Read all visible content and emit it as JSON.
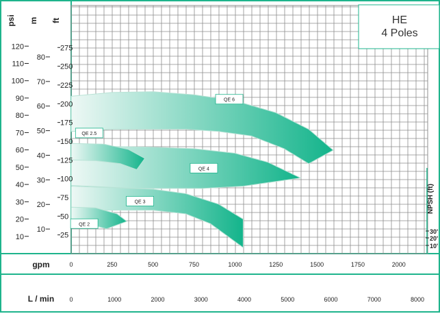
{
  "chart_data": {
    "type": "area",
    "title_line1": "HE",
    "title_line2": "4 Poles",
    "colors": {
      "frame": "#1eb48c",
      "grid": "#8c8c8c",
      "fill": "#13b48b",
      "light": "#eef8f5"
    },
    "y_axes": [
      {
        "label": "psi",
        "ticks": [
          {
            "v": 10,
            "t": "10"
          },
          {
            "v": 20,
            "t": "20"
          },
          {
            "v": 30,
            "t": "30"
          },
          {
            "v": 40,
            "t": "40"
          },
          {
            "v": 50,
            "t": "50"
          },
          {
            "v": 60,
            "t": "60"
          },
          {
            "v": 70,
            "t": "70"
          },
          {
            "v": 80,
            "t": "80"
          },
          {
            "v": 90,
            "t": "90"
          },
          {
            "v": 100,
            "t": "100"
          },
          {
            "v": 110,
            "t": "110"
          },
          {
            "v": 120,
            "t": "120"
          }
        ]
      },
      {
        "label": "m",
        "ticks": [
          {
            "v": 10,
            "t": "10"
          },
          {
            "v": 20,
            "t": "20"
          },
          {
            "v": 30,
            "t": "30"
          },
          {
            "v": 40,
            "t": "40"
          },
          {
            "v": 50,
            "t": "50"
          },
          {
            "v": 60,
            "t": "60"
          },
          {
            "v": 70,
            "t": "70"
          },
          {
            "v": 80,
            "t": "80"
          }
        ]
      },
      {
        "label": "ft",
        "ticks": [
          {
            "v": 25,
            "t": "25"
          },
          {
            "v": 50,
            "t": "50"
          },
          {
            "v": 75,
            "t": "75"
          },
          {
            "v": 100,
            "t": "100"
          },
          {
            "v": 125,
            "t": "125"
          },
          {
            "v": 150,
            "t": "150"
          },
          {
            "v": 175,
            "t": "175"
          },
          {
            "v": 200,
            "t": "200"
          },
          {
            "v": 225,
            "t": "225"
          },
          {
            "v": 250,
            "t": "250"
          },
          {
            "v": 275,
            "t": "275"
          }
        ]
      }
    ],
    "x_axes": [
      {
        "label": "gpm",
        "ticks": [
          {
            "v": 0,
            "t": "0"
          },
          {
            "v": 250,
            "t": "250"
          },
          {
            "v": 500,
            "t": "500"
          },
          {
            "v": 750,
            "t": "750"
          },
          {
            "v": 1000,
            "t": "1000"
          },
          {
            "v": 1250,
            "t": "1250"
          },
          {
            "v": 1500,
            "t": "1500"
          },
          {
            "v": 1750,
            "t": "1750"
          },
          {
            "v": 2000,
            "t": "2000"
          }
        ]
      },
      {
        "label": "L / min",
        "ticks": [
          {
            "v": 0,
            "t": "0"
          },
          {
            "v": 1000,
            "t": "1000"
          },
          {
            "v": 2000,
            "t": "2000"
          },
          {
            "v": 3000,
            "t": "3000"
          },
          {
            "v": 4000,
            "t": "4000"
          },
          {
            "v": 5000,
            "t": "5000"
          },
          {
            "v": 6000,
            "t": "6000"
          },
          {
            "v": 7000,
            "t": "7000"
          },
          {
            "v": 8000,
            "t": "8000"
          }
        ]
      }
    ],
    "xlim_gpm": [
      0,
      2150
    ],
    "ylim_ft": [
      0,
      300
    ],
    "series": [
      {
        "name": "QE 6",
        "top": [
          [
            0,
            210
          ],
          [
            250,
            215
          ],
          [
            500,
            216
          ],
          [
            750,
            212
          ],
          [
            1000,
            204
          ],
          [
            1250,
            188
          ],
          [
            1450,
            166
          ],
          [
            1600,
            138
          ]
        ],
        "bottom": [
          [
            1450,
            120
          ],
          [
            1300,
            140
          ],
          [
            1100,
            157
          ],
          [
            900,
            163
          ],
          [
            700,
            166
          ],
          [
            500,
            166
          ],
          [
            250,
            166
          ],
          [
            0,
            163
          ]
        ],
        "label_at": [
          965,
          206
        ]
      },
      {
        "name": "QE 4",
        "top": [
          [
            0,
            143
          ],
          [
            250,
            143
          ],
          [
            500,
            142
          ],
          [
            750,
            140
          ],
          [
            1000,
            134
          ],
          [
            1200,
            122
          ],
          [
            1400,
            101
          ]
        ],
        "bottom": [
          [
            1050,
            90
          ],
          [
            800,
            87
          ],
          [
            600,
            87
          ],
          [
            400,
            87
          ],
          [
            200,
            89
          ],
          [
            0,
            91
          ]
        ],
        "label_at": [
          810,
          114
        ]
      },
      {
        "name": "QE 3",
        "top": [
          [
            0,
            90
          ],
          [
            250,
            88
          ],
          [
            500,
            86
          ],
          [
            700,
            80
          ],
          [
            900,
            66
          ],
          [
            1050,
            46
          ]
        ],
        "bottom": [
          [
            1050,
            8
          ],
          [
            850,
            40
          ],
          [
            700,
            53
          ],
          [
            500,
            58
          ],
          [
            250,
            58
          ],
          [
            0,
            58
          ]
        ],
        "label_at": [
          420,
          70
        ]
      },
      {
        "name": "QE 2.5",
        "top": [
          [
            0,
            147
          ],
          [
            200,
            146
          ],
          [
            350,
            139
          ],
          [
            450,
            127
          ]
        ],
        "bottom": [
          [
            400,
            112
          ],
          [
            300,
            120
          ],
          [
            150,
            124
          ],
          [
            0,
            125
          ]
        ],
        "label_at": [
          110,
          161
        ]
      },
      {
        "name": "QE 2",
        "top": [
          [
            0,
            62
          ],
          [
            150,
            61
          ],
          [
            280,
            53
          ],
          [
            340,
            43
          ]
        ],
        "bottom": [
          [
            215,
            33
          ],
          [
            150,
            37
          ],
          [
            0,
            37
          ]
        ],
        "label_at": [
          80,
          40
        ]
      }
    ],
    "npsh": {
      "label": "NPSH (ft)",
      "ticks": [
        {
          "t": "30'"
        },
        {
          "t": "20'"
        },
        {
          "t": "10'"
        }
      ]
    }
  }
}
